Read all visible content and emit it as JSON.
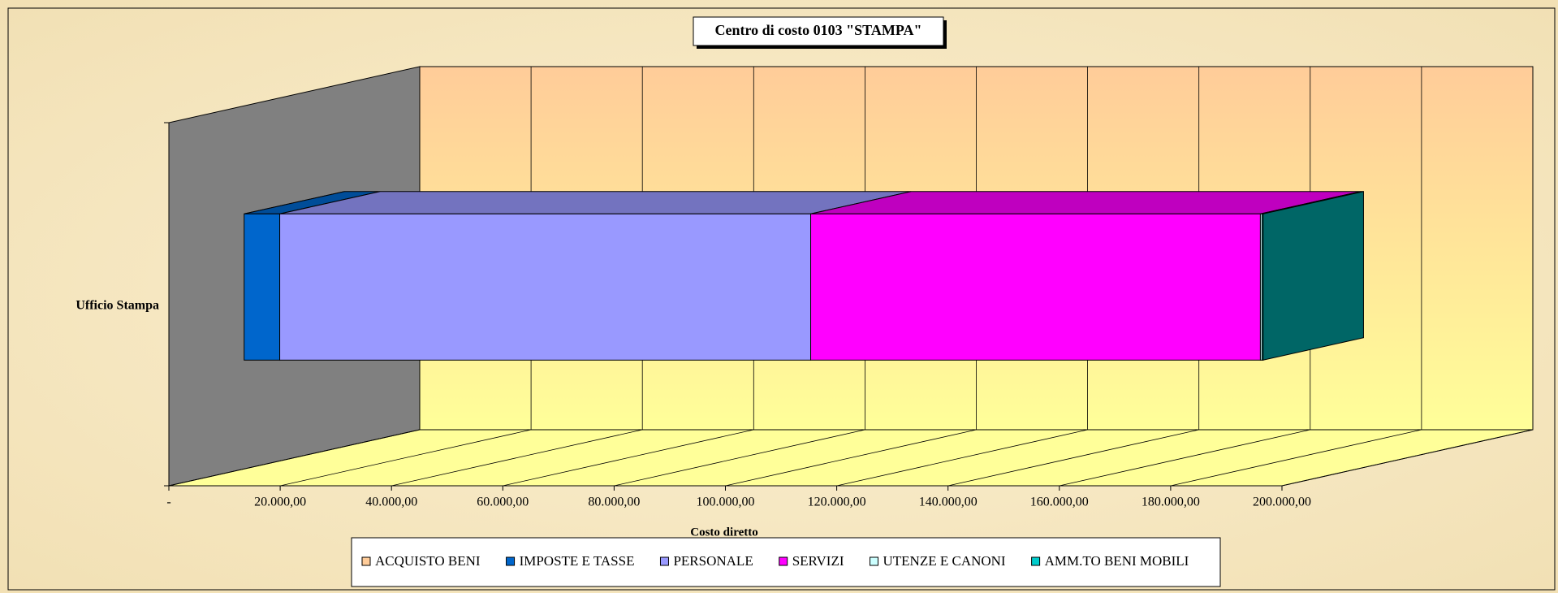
{
  "chart_data": {
    "type": "bar3d_stacked_horizontal",
    "title": "Centro di costo 0103 \"STAMPA\"",
    "x_label": "Costo diretto",
    "categories": [
      "Ufficio Stampa"
    ],
    "series": [
      {
        "name": "ACQUISTO BENI",
        "color": "#ffcc99",
        "values": [
          0
        ]
      },
      {
        "name": "IMPOSTE E TASSE",
        "color": "#0066cc",
        "values": [
          6400
        ]
      },
      {
        "name": "PERSONALE",
        "color": "#9999ff",
        "values": [
          95400
        ]
      },
      {
        "name": "SERVIZI",
        "color": "#ff00ff",
        "values": [
          80800
        ]
      },
      {
        "name": "UTENZE E CANONI",
        "color": "#ccffff",
        "values": [
          300
        ]
      },
      {
        "name": "AMM.TO BENI MOBILI",
        "color": "#00cccc",
        "values": [
          200
        ]
      }
    ],
    "xlim": [
      0,
      200000
    ],
    "xticks": [
      {
        "value": 0,
        "label": "-"
      },
      {
        "value": 20000,
        "label": "20.000,00"
      },
      {
        "value": 40000,
        "label": "40.000,00"
      },
      {
        "value": 60000,
        "label": "60.000,00"
      },
      {
        "value": 80000,
        "label": "80.000,00"
      },
      {
        "value": 100000,
        "label": "100.000,00"
      },
      {
        "value": 120000,
        "label": "120.000,00"
      },
      {
        "value": 140000,
        "label": "140.000,00"
      },
      {
        "value": 160000,
        "label": "160.000,00"
      },
      {
        "value": 180000,
        "label": "180.000,00"
      },
      {
        "value": 200000,
        "label": "200.000,00"
      }
    ],
    "grid": true,
    "legend": "bottom"
  }
}
